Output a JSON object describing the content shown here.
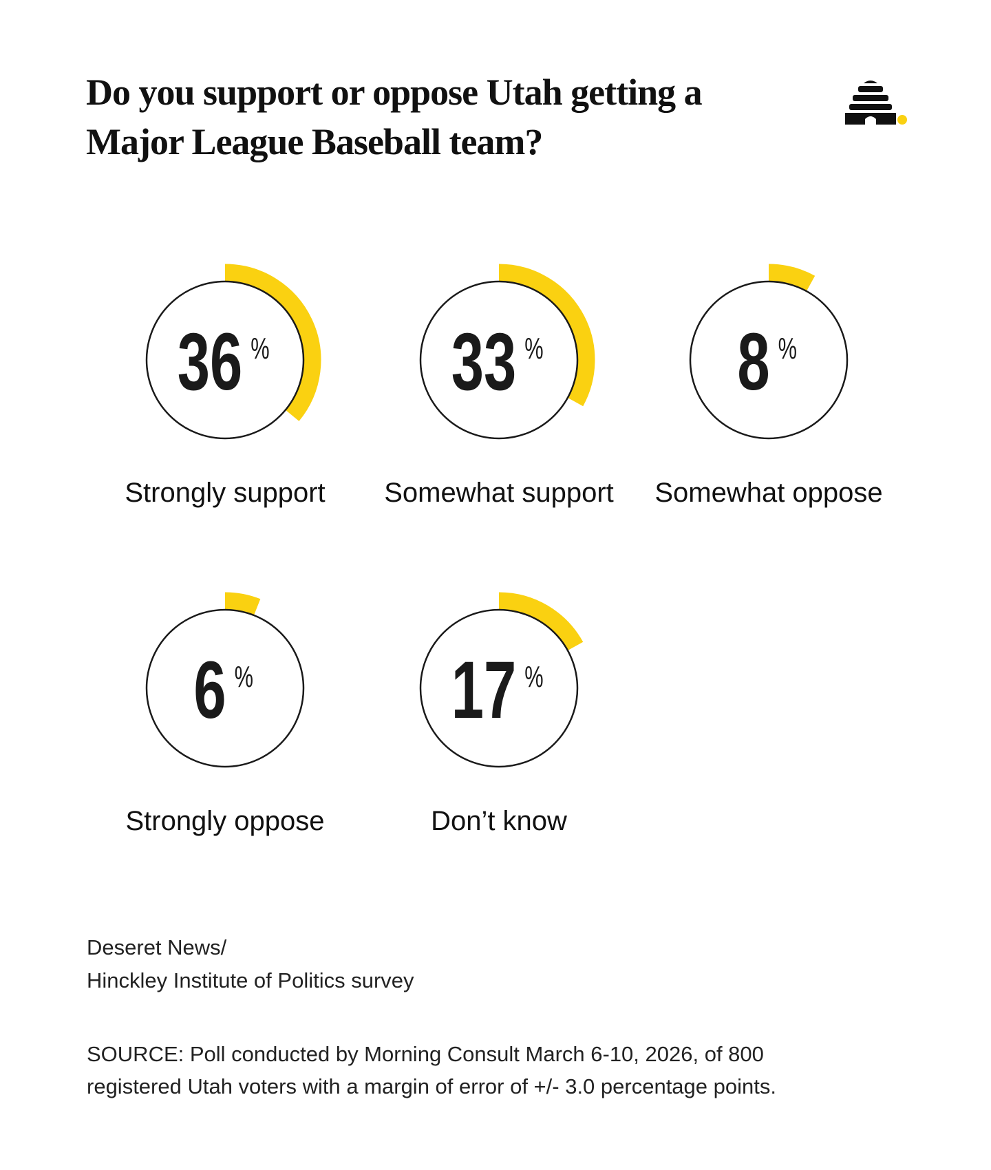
{
  "chart_data": {
    "type": "radial",
    "title": [
      "Do you support or oppose Utah getting a",
      "Major League Baseball team?"
    ],
    "categories": [
      "Strongly support",
      "Somewhat support",
      "Somewhat oppose",
      "Strongly oppose",
      "Don’t know"
    ],
    "values": [
      36,
      33,
      8,
      6,
      17
    ],
    "unit": "%",
    "ylim": [
      0,
      100
    ],
    "color": "#fad111",
    "credit": [
      "Deseret News/",
      "Hinckley Institute of Politics survey"
    ],
    "source": [
      "SOURCE: Poll conducted by Morning Consult March 6-10, 2026, of 800",
      "registered Utah voters with a margin of error of +/- 3.0 percentage points."
    ]
  }
}
